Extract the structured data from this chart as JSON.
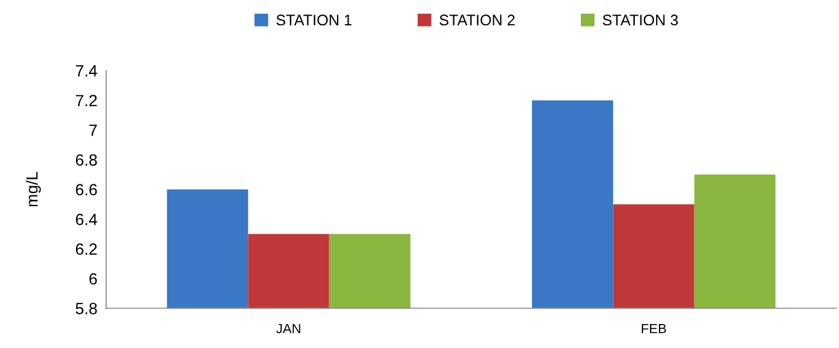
{
  "chart_data": {
    "type": "bar",
    "ylabel": "mg/L",
    "categories": [
      "JAN",
      "FEB"
    ],
    "series": [
      {
        "name": "STATION 1",
        "color": "#3a78c6",
        "values": [
          6.6,
          7.2
        ]
      },
      {
        "name": "STATION 2",
        "color": "#c0393a",
        "values": [
          6.3,
          6.5
        ]
      },
      {
        "name": "STATION 3",
        "color": "#8bb63f",
        "values": [
          6.3,
          6.7
        ]
      }
    ],
    "ylim": [
      5.8,
      7.4
    ],
    "yticks": [
      5.8,
      6,
      6.2,
      6.4,
      6.6,
      6.8,
      7,
      7.2,
      7.4
    ],
    "grid": false,
    "legend": "top"
  }
}
